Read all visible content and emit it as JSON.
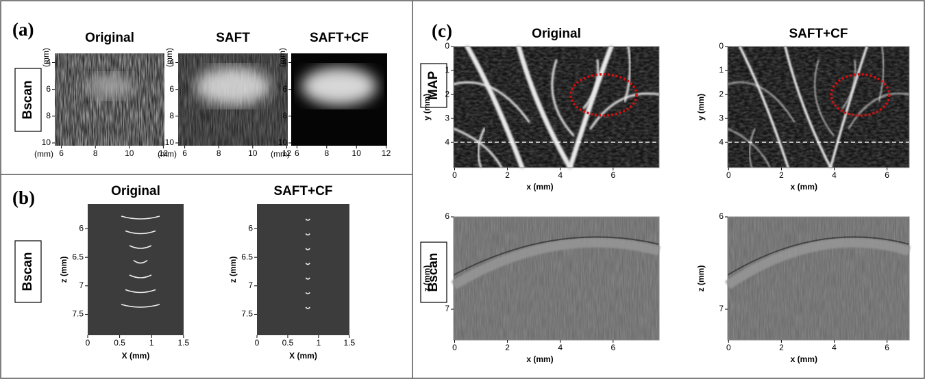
{
  "panel_a": {
    "label": "(a)",
    "row_label": "Bscan",
    "y_unit": "(mm)",
    "x_unit": "(mm)",
    "images": [
      {
        "title": "Original"
      },
      {
        "title": "SAFT"
      },
      {
        "title": "SAFT+CF"
      }
    ],
    "yticks": [
      4,
      6,
      8,
      10
    ],
    "xticks": [
      6,
      8,
      10,
      12
    ]
  },
  "panel_b": {
    "label": "(b)",
    "row_label": "Bscan",
    "plots": [
      {
        "title": "Original"
      },
      {
        "title": "SAFT+CF"
      }
    ],
    "y_label": "z (mm)",
    "yticks": [
      6,
      6.5,
      7,
      7.5
    ],
    "x_label": "X (mm)",
    "xticks": [
      0,
      0.5,
      1,
      1.5
    ]
  },
  "panel_c": {
    "label": "(c)",
    "columns": [
      "Original",
      "SAFT+CF"
    ],
    "rows": [
      {
        "row_label": "MAP",
        "y_label": "y (mm)",
        "yticks": [
          0,
          1,
          2,
          3,
          4
        ],
        "x_label": "x (mm)",
        "xticks": [
          0,
          2,
          4,
          6
        ]
      },
      {
        "row_label": "Bscan",
        "y_label": "z (mm)",
        "yticks": [
          6,
          7
        ],
        "x_label": "x (mm)",
        "xticks": [
          0,
          2,
          4,
          6
        ]
      }
    ]
  }
}
